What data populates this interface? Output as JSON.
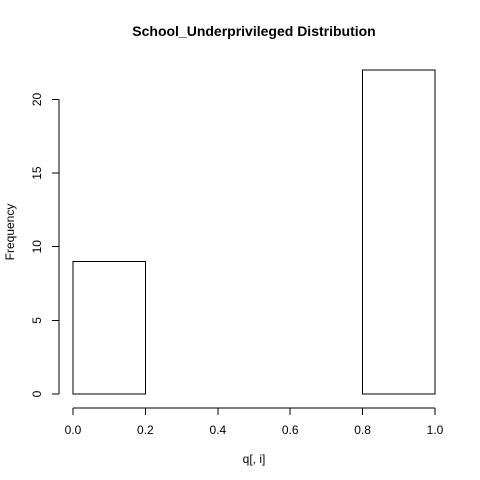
{
  "chart_data": {
    "type": "bar",
    "title": "School_Underprivileged Distribution",
    "xlabel": "q[, i]",
    "ylabel": "Frequency",
    "bins": [
      {
        "start": 0.0,
        "end": 0.2,
        "count": 9
      },
      {
        "start": 0.2,
        "end": 0.4,
        "count": 0
      },
      {
        "start": 0.4,
        "end": 0.6,
        "count": 0
      },
      {
        "start": 0.6,
        "end": 0.8,
        "count": 0
      },
      {
        "start": 0.8,
        "end": 1.0,
        "count": 22
      }
    ],
    "xlim": [
      0.0,
      1.0
    ],
    "ylim": [
      0,
      22
    ],
    "x_ticks": [
      "0.0",
      "0.2",
      "0.4",
      "0.6",
      "0.8",
      "1.0"
    ],
    "y_ticks": [
      "0",
      "5",
      "10",
      "15",
      "20"
    ],
    "grid": false,
    "legend": "none",
    "colors": {
      "bar_fill": "#ffffff",
      "bar_stroke": "#000000",
      "text": "#000000"
    }
  }
}
